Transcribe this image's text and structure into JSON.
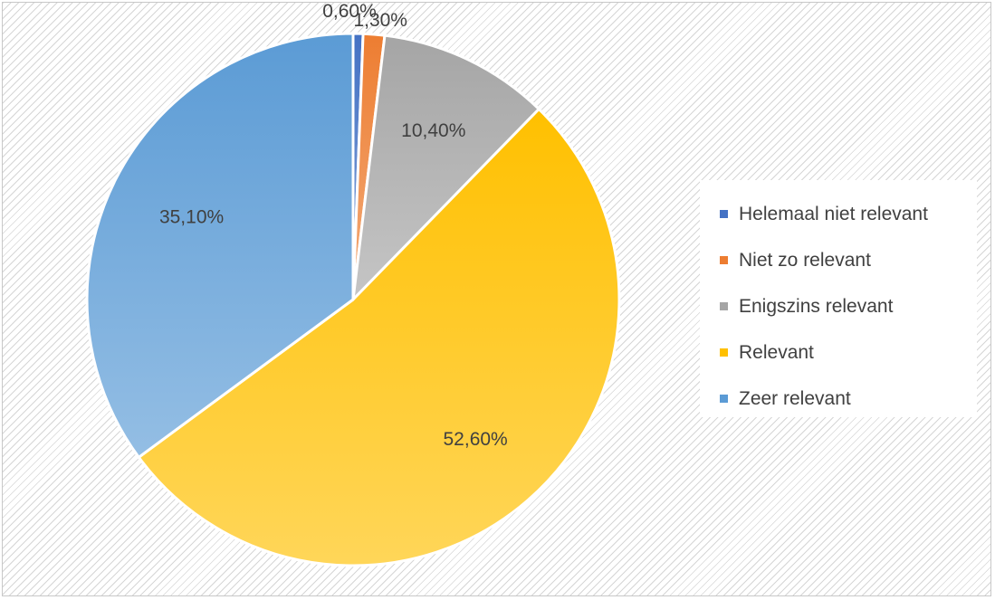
{
  "chart_data": {
    "type": "pie",
    "categories": [
      "Helemaal niet relevant",
      "Niet zo relevant",
      "Enigszins relevant",
      "Relevant",
      "Zeer relevant"
    ],
    "values": [
      0.6,
      1.3,
      10.4,
      52.6,
      35.1
    ],
    "data_labels": [
      "0,60%",
      "1,30%",
      "10,40%",
      "52,60%",
      "35,10%"
    ],
    "colors": [
      "#4472c4",
      "#ed7d31",
      "#a5a5a5",
      "#ffc000",
      "#5b9bd5"
    ],
    "start_angle_deg": 0,
    "direction": "clockwise",
    "legend_placement": "right",
    "title": ""
  },
  "legend": {
    "items": [
      {
        "label": "Helemaal niet relevant",
        "color": "#4472c4"
      },
      {
        "label": "Niet zo relevant",
        "color": "#ed7d31"
      },
      {
        "label": "Enigszins relevant",
        "color": "#a5a5a5"
      },
      {
        "label": "Relevant",
        "color": "#ffc000"
      },
      {
        "label": "Zeer relevant",
        "color": "#5b9bd5"
      }
    ]
  }
}
